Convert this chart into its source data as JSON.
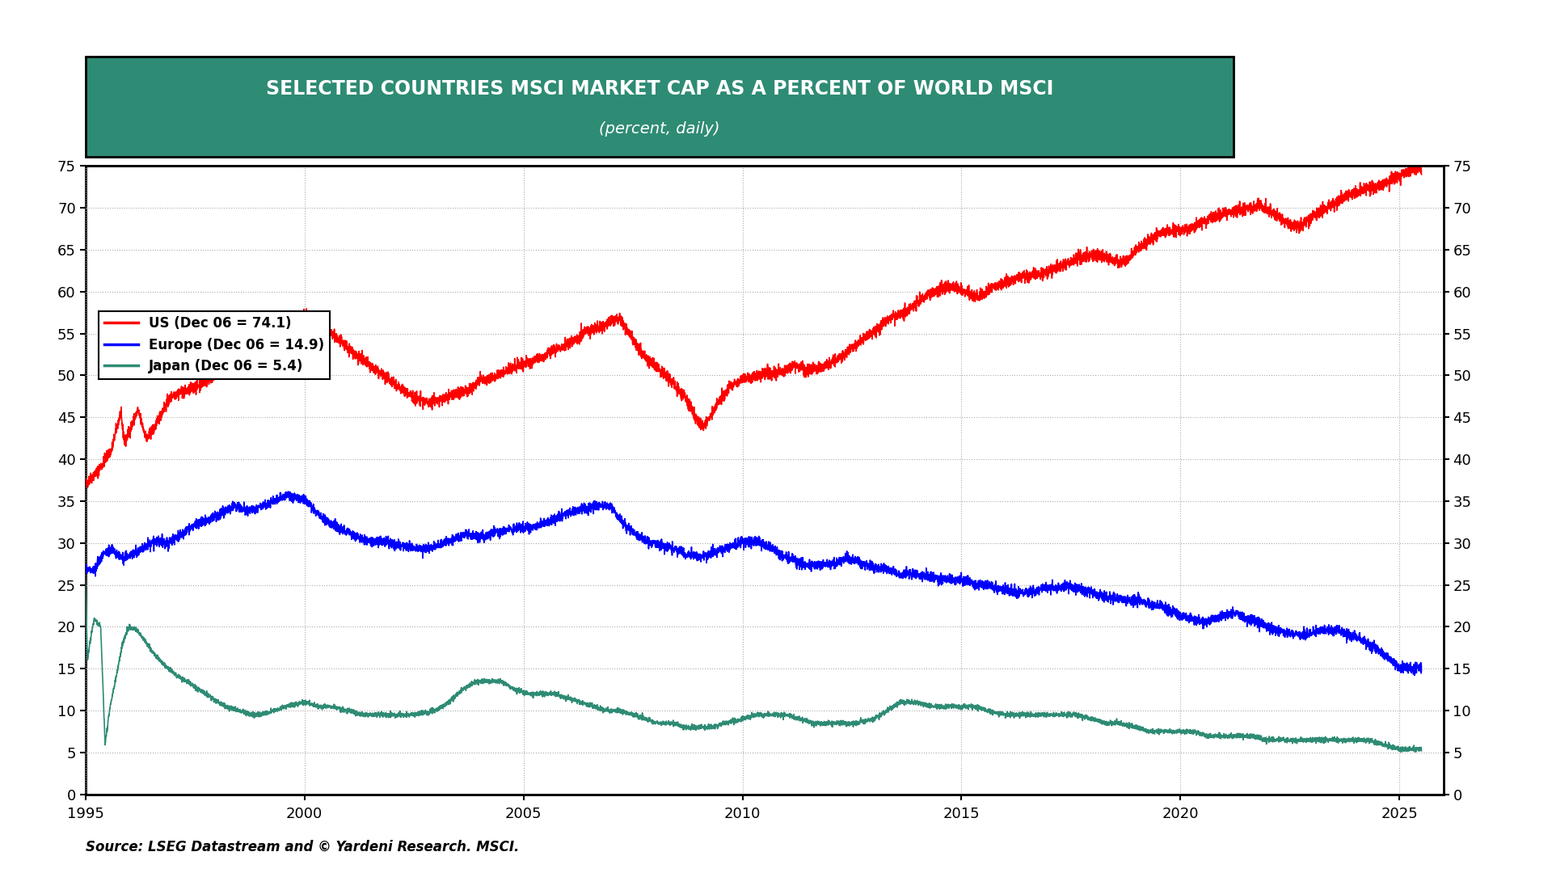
{
  "title_line1": "SELECTED COUNTRIES MSCI MARKET CAP AS A PERCENT OF WORLD MSCI",
  "title_line2": "(percent, daily)",
  "title_bg_color": "#2E8B74",
  "title_text_color": "#FFFFFF",
  "legend_entries": [
    {
      "label": "US (Dec 06 = 74.1)",
      "color": "#FF0000"
    },
    {
      "label": "Europe (Dec 06 = 14.9)",
      "color": "#0000FF"
    },
    {
      "label": "Japan (Dec 06 = 5.4)",
      "color": "#2E8B74"
    }
  ],
  "source_text": "Source: LSEG Datastream and © Yardeni Research. MSCI.",
  "xlim": [
    1995,
    2026
  ],
  "ylim": [
    0,
    75
  ],
  "yticks": [
    0,
    5,
    10,
    15,
    20,
    25,
    30,
    35,
    40,
    45,
    50,
    55,
    60,
    65,
    70,
    75
  ],
  "xticks": [
    1995,
    2000,
    2005,
    2010,
    2015,
    2020,
    2025
  ],
  "background_color": "#FFFFFF",
  "plot_bg_color": "#FFFFFF",
  "grid_color": "#AAAAAA",
  "grid_style": ":",
  "line_width": 1.2
}
